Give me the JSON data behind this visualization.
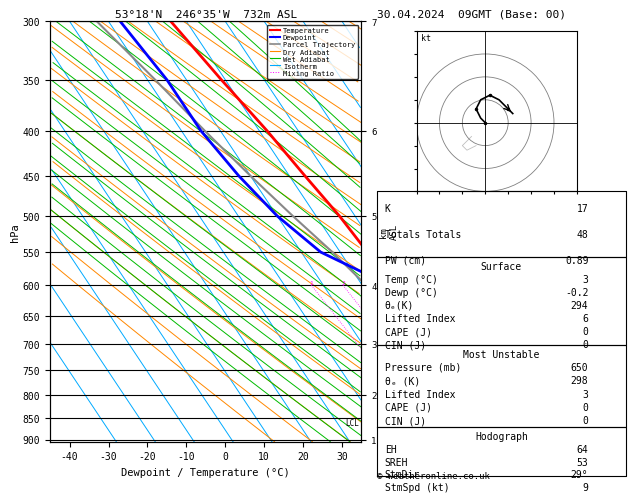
{
  "title_left": "53°18'N  246°35'W  732m ASL",
  "title_right": "30.04.2024  09GMT (Base: 00)",
  "xlabel": "Dewpoint / Temperature (°C)",
  "ylabel_left": "hPa",
  "pressure_levels": [
    300,
    350,
    400,
    450,
    500,
    550,
    600,
    650,
    700,
    750,
    800,
    850,
    900
  ],
  "t_min": -45,
  "t_max": 35,
  "p_min": 300,
  "p_max": 905,
  "temp_color": "#ff0000",
  "dewp_color": "#0000ff",
  "parcel_color": "#888888",
  "dry_adiabat_color": "#ff8800",
  "wet_adiabat_color": "#00bb00",
  "isotherm_color": "#00aaff",
  "mixing_ratio_color": "#ff00ff",
  "background_color": "#ffffff",
  "skew_deg": 45,
  "km_ticks": [
    1,
    2,
    3,
    4,
    5,
    6,
    7
  ],
  "km_pressures": [
    900,
    800,
    700,
    600,
    500,
    400,
    300
  ],
  "lcl_pressure": 860,
  "sounding_data": {
    "K": 17,
    "Totals_Totals": 48,
    "PW_cm": 0.89,
    "Surface_Temp_C": 3,
    "Surface_Dewp_C": -0.2,
    "Surface_theta_e_K": 294,
    "Surface_LI": 6,
    "Surface_CAPE_J": 0,
    "Surface_CIN_J": 0,
    "MU_Pressure_mb": 650,
    "MU_theta_e_K": 298,
    "MU_LI": 3,
    "MU_CAPE_J": 0,
    "MU_CIN_J": 0,
    "Hodo_EH": 64,
    "Hodo_SREH": 53,
    "StmDir_deg": 29,
    "StmSpd_kt": 9
  },
  "copyright": "© weatheronline.co.uk"
}
